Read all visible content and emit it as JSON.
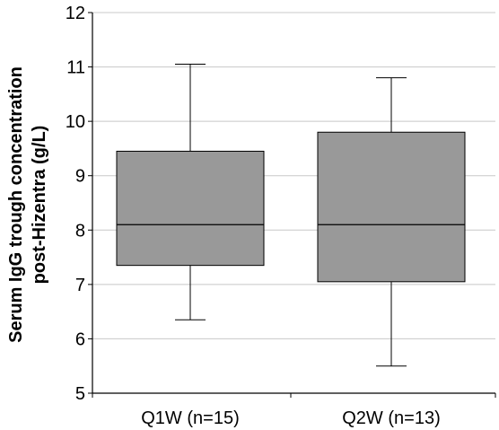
{
  "chart_data": {
    "type": "box",
    "title": "",
    "xlabel": "",
    "ylabel_lines": [
      "Serum IgG trough concentration",
      "post-Hizentra (g/L)"
    ],
    "ylim": [
      5,
      12
    ],
    "yticks": [
      5,
      6,
      7,
      8,
      9,
      10,
      11,
      12
    ],
    "grid": true,
    "categories": [
      "Q1W (n=15)",
      "Q2W (n=13)"
    ],
    "boxes": [
      {
        "category": "Q1W (n=15)",
        "min": 6.35,
        "q1": 7.35,
        "median": 8.1,
        "q3": 9.45,
        "max": 11.05
      },
      {
        "category": "Q2W (n=13)",
        "min": 5.5,
        "q1": 7.05,
        "median": 8.1,
        "q3": 9.8,
        "max": 10.8
      }
    ],
    "colors": {
      "box_fill": "#999999",
      "stroke": "#000000",
      "grid": "#c8c8c8",
      "axis": "#000000"
    }
  }
}
